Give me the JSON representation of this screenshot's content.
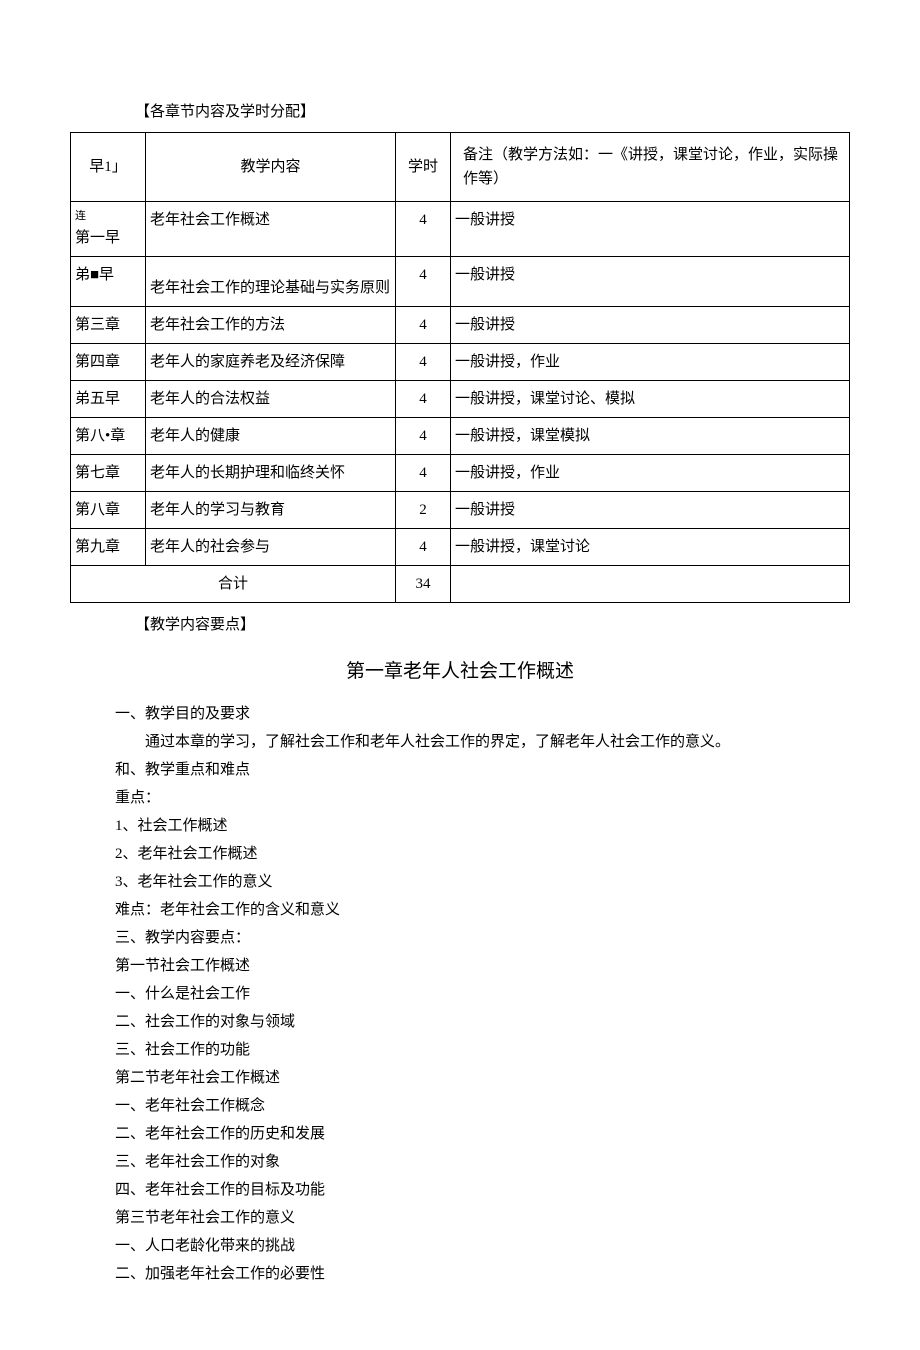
{
  "section_header_1": "【各章节内容及学时分配】",
  "table": {
    "headers": {
      "chapter": "早1」",
      "content": "教学内容",
      "hours": "学时",
      "notes": "备注（教学方法如：一《讲授，课堂讨论，作业，实际操作等）"
    },
    "rows": [
      {
        "chapter_small": "连",
        "chapter": "第一早",
        "content": "老年社会工作概述",
        "hours": "4",
        "notes": "一般讲授"
      },
      {
        "chapter": "弟■早",
        "content": "老年社会工作的理论基础与实务原则",
        "hours": "4",
        "notes": "一般讲授",
        "tall": true
      },
      {
        "chapter": "第三章",
        "content": "老年社会工作的方法",
        "hours": "4",
        "notes": "一般讲授"
      },
      {
        "chapter": "第四章",
        "content": "老年人的家庭养老及经济保障",
        "hours": "4",
        "notes": "一般讲授，作业"
      },
      {
        "chapter": "弟五早",
        "content": "老年人的合法权益",
        "hours": "4",
        "notes": "一般讲授，课堂讨论、模拟"
      },
      {
        "chapter": "第八•章",
        "content": "老年人的健康",
        "hours": "4",
        "notes": "一般讲授，课堂模拟"
      },
      {
        "chapter": "第七章",
        "content": "老年人的长期护理和临终关怀",
        "hours": "4",
        "notes": "一般讲授，作业"
      },
      {
        "chapter": "第八章",
        "content": "老年人的学习与教育",
        "hours": "2",
        "notes": "一般讲授"
      },
      {
        "chapter": "第九章",
        "content": "老年人的社会参与",
        "hours": "4",
        "notes": "一般讲授，课堂讨论"
      }
    ],
    "total": {
      "label": "合计",
      "hours": "34"
    }
  },
  "section_header_2": "【教学内容要点】",
  "chapter_title": "第一章老年人社会工作概述",
  "content_lines": [
    "一、教学目的及要求",
    "通过本章的学习，了解社会工作和老年人社会工作的界定，了解老年人社会工作的意义。",
    "和、教学重点和难点",
    "重点：",
    "1、社会工作概述",
    "2、老年社会工作概述",
    "3、老年社会工作的意义",
    "难点：老年社会工作的含义和意义",
    "三、教学内容要点：",
    "第一节社会工作概述",
    "一、什么是社会工作",
    "二、社会工作的对象与领域",
    "三、社会工作的功能",
    "第二节老年社会工作概述",
    "一、老年社会工作概念",
    "二、老年社会工作的历史和发展",
    "三、老年社会工作的对象",
    "四、老年社会工作的目标及功能",
    "第三节老年社会工作的意义",
    "一、人口老龄化带来的挑战",
    "二、加强老年社会工作的必要性"
  ],
  "indented_lines": [
    1
  ]
}
